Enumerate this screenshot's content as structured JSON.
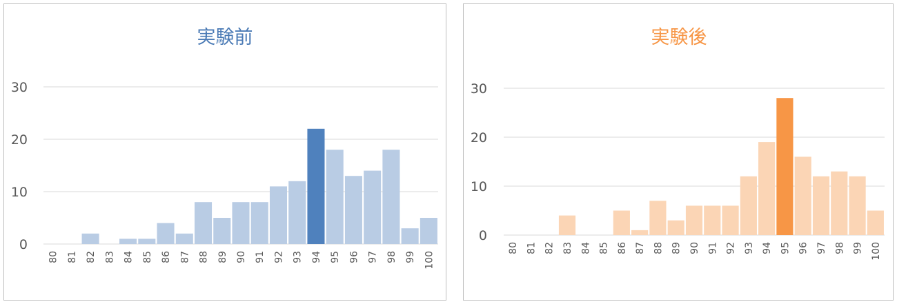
{
  "chart_data": [
    {
      "type": "bar",
      "title": "実験前",
      "categories": [
        "80",
        "81",
        "82",
        "83",
        "84",
        "85",
        "86",
        "87",
        "88",
        "89",
        "90",
        "91",
        "92",
        "93",
        "94",
        "95",
        "96",
        "97",
        "98",
        "99",
        "100"
      ],
      "values": [
        0,
        0,
        2,
        0,
        1,
        1,
        4,
        2,
        8,
        5,
        8,
        8,
        11,
        12,
        22,
        18,
        13,
        14,
        18,
        3,
        5
      ],
      "highlight_index": 14,
      "ylim": [
        0,
        30
      ],
      "yticks": [
        "0",
        "10",
        "20",
        "30"
      ],
      "grid": true,
      "colors": {
        "title": "#4a7ab5",
        "bar": "#b9cce4",
        "highlight": "#4f81bd",
        "grid": "#d9d9d9"
      }
    },
    {
      "type": "bar",
      "title": "実験後",
      "categories": [
        "80",
        "81",
        "82",
        "83",
        "84",
        "85",
        "86",
        "87",
        "88",
        "89",
        "90",
        "91",
        "92",
        "93",
        "94",
        "95",
        "96",
        "97",
        "98",
        "99",
        "100"
      ],
      "values": [
        0,
        0,
        0,
        4,
        0,
        0,
        5,
        1,
        7,
        3,
        6,
        6,
        6,
        12,
        19,
        28,
        16,
        12,
        13,
        12,
        5
      ],
      "highlight_index": 15,
      "ylim": [
        0,
        30
      ],
      "yticks": [
        "0",
        "10",
        "20",
        "30"
      ],
      "grid": true,
      "colors": {
        "title": "#f79646",
        "bar": "#fbd5b5",
        "highlight": "#f79646",
        "grid": "#d9d9d9"
      }
    }
  ]
}
